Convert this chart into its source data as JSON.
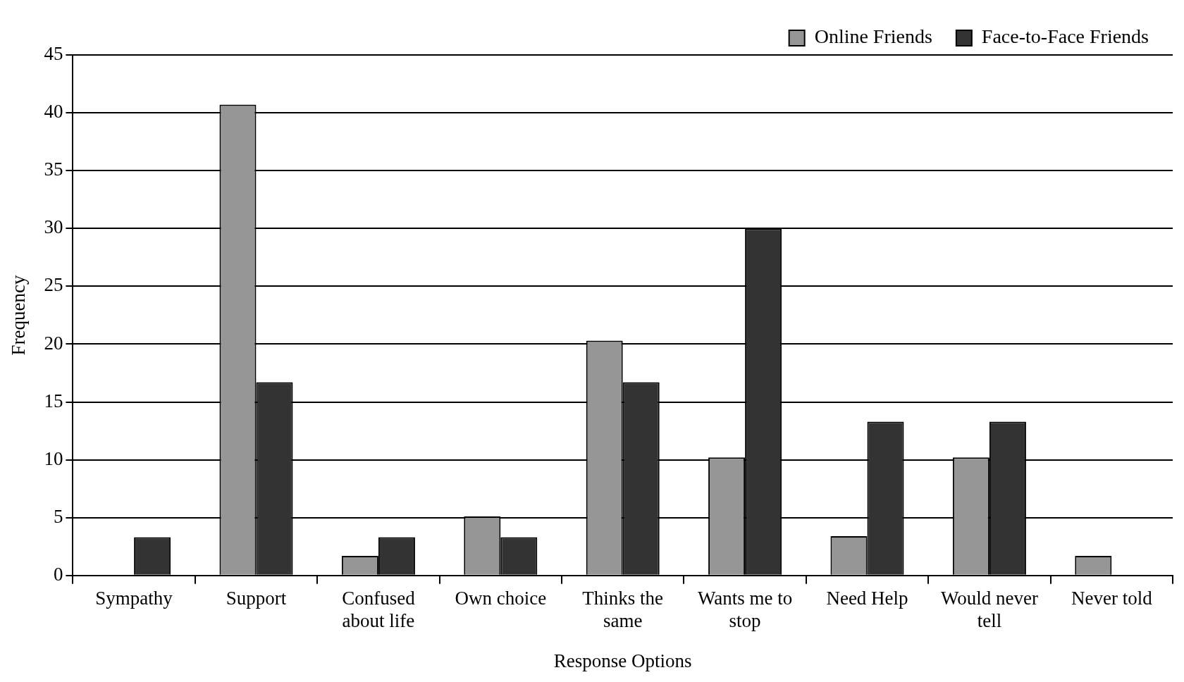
{
  "chart_data": {
    "type": "bar",
    "xlabel": "Response Options",
    "ylabel": "Frequency",
    "categories": [
      "Sympathy",
      "Support",
      "Confused about life",
      "Own choice",
      "Thinks the same",
      "Wants me to stop",
      "Need Help",
      "Would never tell",
      "Never told"
    ],
    "series": [
      {
        "name": "Online Friends",
        "color": "#969696",
        "values": [
          0,
          40.7,
          1.7,
          5.1,
          20.3,
          10.2,
          3.4,
          10.2,
          1.7
        ]
      },
      {
        "name": "Face-to-Face Friends",
        "color": "#333333",
        "values": [
          3.3,
          16.7,
          3.3,
          3.3,
          16.7,
          30,
          13.3,
          13.3,
          0
        ]
      }
    ],
    "ylim": [
      0,
      45
    ],
    "yticks": [
      0,
      5,
      10,
      15,
      20,
      25,
      30,
      35,
      40,
      45
    ],
    "grid": "y",
    "legend": "top right"
  }
}
